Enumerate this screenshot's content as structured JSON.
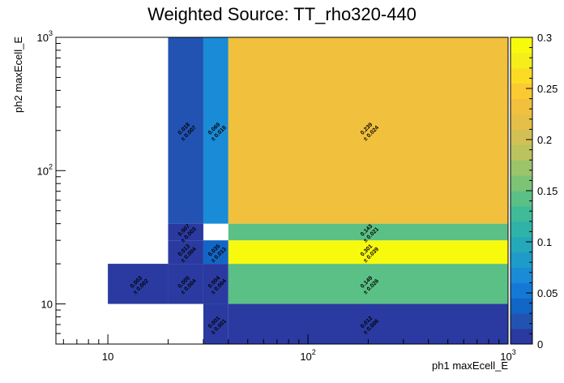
{
  "chart_data": {
    "type": "heatmap",
    "title": "Weighted Source: TT_rho320-440",
    "xlabel": "ph1 maxEcell_E",
    "ylabel": "ph2 maxEcell_E",
    "xscale": "log",
    "yscale": "log",
    "xlim": [
      5.5,
      1000
    ],
    "ylim": [
      5,
      1000
    ],
    "x_major_ticks": [
      {
        "value": 10,
        "base": "10",
        "exp": ""
      },
      {
        "value": 100,
        "base": "10",
        "exp": "2"
      },
      {
        "value": 1000,
        "base": "10",
        "exp": "3"
      }
    ],
    "y_major_ticks": [
      {
        "value": 10,
        "base": "10",
        "exp": ""
      },
      {
        "value": 100,
        "base": "10",
        "exp": "2"
      },
      {
        "value": 1000,
        "base": "10",
        "exp": "3"
      }
    ],
    "zlim": [
      0,
      0.3
    ],
    "colorbar_ticks": [
      "0",
      "0.05",
      "0.1",
      "0.15",
      "0.2",
      "0.25",
      "0.3"
    ],
    "colorbar_tick_values": [
      0,
      0.05,
      0.1,
      0.15,
      0.2,
      0.25,
      0.3
    ],
    "palette": [
      "#2a3aa0",
      "#2253b3",
      "#1266c6",
      "#1479d6",
      "#1a8bd6",
      "#1e9bc9",
      "#25a8b8",
      "#2fb2a8",
      "#3fbb98",
      "#5bc085",
      "#7cc376",
      "#9cc46a",
      "#bbc35e",
      "#d3c054",
      "#e5bf48",
      "#f1c03c",
      "#fbc932",
      "#fbdc24",
      "#f5ee1a",
      "#f8fa0d"
    ],
    "cells": [
      {
        "x0": 10,
        "x1": 20,
        "y0": 10,
        "y1": 20,
        "value": 0.003,
        "label": "0.003",
        "err": "± 0.002"
      },
      {
        "x0": 20,
        "x1": 30,
        "y0": 10,
        "y1": 20,
        "value": 0.005,
        "label": "0.005",
        "err": "± 0.004"
      },
      {
        "x0": 30,
        "x1": 40,
        "y0": 10,
        "y1": 20,
        "value": 0.004,
        "label": "0.004",
        "err": "± 0.004"
      },
      {
        "x0": 40,
        "x1": 1000,
        "y0": 10,
        "y1": 20,
        "value": 0.149,
        "label": "0.149",
        "err": "± 0.026"
      },
      {
        "x0": 30,
        "x1": 40,
        "y0": 5,
        "y1": 10,
        "value": 0.001,
        "label": "0.001",
        "err": "± 0.001"
      },
      {
        "x0": 40,
        "x1": 1000,
        "y0": 5,
        "y1": 10,
        "value": 0.012,
        "label": "0.012",
        "err": "± 0.006"
      },
      {
        "x0": 20,
        "x1": 30,
        "y0": 20,
        "y1": 30,
        "value": 0.013,
        "label": "0.013",
        "err": "± 0.004"
      },
      {
        "x0": 30,
        "x1": 40,
        "y0": 20,
        "y1": 30,
        "value": 0.035,
        "label": "0.035",
        "err": "± 0.013"
      },
      {
        "x0": 40,
        "x1": 1000,
        "y0": 20,
        "y1": 30,
        "value": 0.301,
        "label": "0.301",
        "err": "± 0.039"
      },
      {
        "x0": 20,
        "x1": 30,
        "y0": 30,
        "y1": 40,
        "value": 0.007,
        "label": "0.007",
        "err": "± 0.003"
      },
      {
        "x0": 40,
        "x1": 1000,
        "y0": 30,
        "y1": 40,
        "value": 0.143,
        "label": "0.143",
        "err": "± 0.021"
      },
      {
        "x0": 20,
        "x1": 30,
        "y0": 40,
        "y1": 1000,
        "value": 0.018,
        "label": "0.018",
        "err": "± 0.007"
      },
      {
        "x0": 30,
        "x1": 40,
        "y0": 40,
        "y1": 1000,
        "value": 0.069,
        "label": "0.069",
        "err": "± 0.018"
      },
      {
        "x0": 40,
        "x1": 1000,
        "y0": 40,
        "y1": 1000,
        "value": 0.239,
        "label": "0.239",
        "err": "± 0.024"
      }
    ]
  }
}
